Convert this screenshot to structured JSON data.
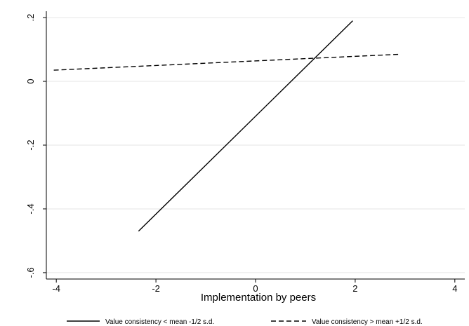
{
  "chart_data": {
    "type": "line",
    "title": "",
    "xlabel": "Implementation by peers",
    "ylabel": "",
    "xlim": [
      -4.2,
      4.2
    ],
    "ylim": [
      -0.62,
      0.22
    ],
    "xticks": [
      -4,
      -2,
      0,
      2,
      4
    ],
    "xtick_labels": [
      "-4",
      "-2",
      "0",
      "2",
      "4"
    ],
    "yticks": [
      -0.6,
      -0.4,
      -0.2,
      0,
      0.2
    ],
    "ytick_labels": [
      "-.6",
      "-.4",
      "-.2",
      "0",
      ".2"
    ],
    "grid": "horizontal",
    "legend_position": "bottom",
    "series": [
      {
        "name": "Value consistency < mean -1/2 s.d.",
        "style": "solid",
        "color": "#000000",
        "x": [
          -2.35,
          1.95
        ],
        "y": [
          -0.47,
          0.19
        ]
      },
      {
        "name": "Value consistency > mean +1/2 s.d.",
        "style": "dashed",
        "color": "#000000",
        "x": [
          -4.05,
          2.9
        ],
        "y": [
          0.035,
          0.085
        ]
      }
    ]
  }
}
